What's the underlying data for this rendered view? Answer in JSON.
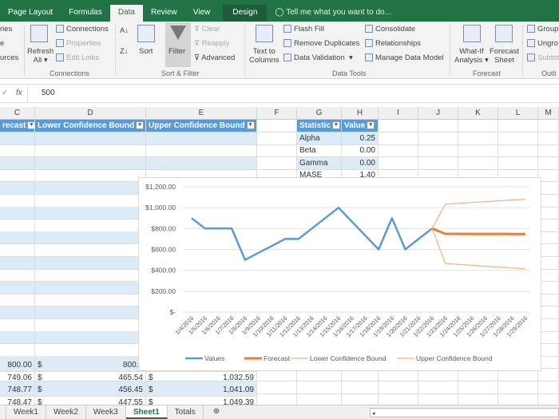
{
  "ribbon_tabs": [
    "Page Layout",
    "Formulas",
    "Data",
    "Review",
    "View"
  ],
  "active_tab": "Data",
  "design_tab": "Design",
  "tell_me": "Tell me what you want to do...",
  "ribbon": {
    "left_partial": [
      "ries",
      "e",
      "urces"
    ],
    "refresh": "Refresh",
    "refresh_all": "All",
    "connections": "Connections",
    "properties": "Properties",
    "edit_links": "Edit Links",
    "sort": "Sort",
    "filter": "Filter",
    "clear": "Clear",
    "reapply": "Reapply",
    "advanced": "Advanced",
    "text_to": "Text to",
    "columns": "Columns",
    "flash_fill": "Flash Fill",
    "remove_duplicates": "Remove Duplicates",
    "data_validation": "Data Validation",
    "consolidate": "Consolidate",
    "relationships": "Relationships",
    "manage_data_model": "Manage Data Model",
    "what_if": "What-If",
    "analysis": "Analysis",
    "forecast": "Forecast",
    "sheet": "Sheet",
    "group": "Group",
    "ungroup": "Ungro",
    "subtotal": "Subtot",
    "groups": {
      "connections": "Connections",
      "sort_filter": "Sort & Filter",
      "data_tools": "Data Tools",
      "forecast": "Forecast",
      "outline": "Outli"
    }
  },
  "formula_bar": {
    "fx": "fx",
    "value": "500"
  },
  "columns": [
    "C",
    "D",
    "E",
    "F",
    "G",
    "H",
    "I",
    "J",
    "K",
    "L",
    "M"
  ],
  "table_headers": {
    "c": "recast",
    "d": "Lower Confidence Bound",
    "e": "Upper Confidence Bound"
  },
  "stats": {
    "headers": [
      "Statistic",
      "Value"
    ],
    "rows": [
      [
        "Alpha",
        "0.25"
      ],
      [
        "Beta",
        "0.00"
      ],
      [
        "Gamma",
        "0.00"
      ],
      [
        "MASE",
        "1.40"
      ]
    ]
  },
  "bottom_rows": [
    {
      "c": "800.00",
      "d_cur": "$",
      "d": "800.0",
      "e_cur": "",
      "e": ""
    },
    {
      "c": "749.06",
      "d_cur": "$",
      "d": "465.54",
      "e_cur": "$",
      "e": "1,032.59"
    },
    {
      "c": "748.77",
      "d_cur": "$",
      "d": "456.45",
      "e_cur": "$",
      "e": "1,041.09"
    },
    {
      "c": "748.47",
      "d_cur": "$",
      "d": "447.55",
      "e_cur": "$",
      "e": "1,049.39"
    }
  ],
  "sheet_tabs": [
    "Week1",
    "Week2",
    "Week3",
    "Sheet1",
    "Totals"
  ],
  "active_sheet": "Sheet1",
  "chart_data": {
    "type": "line",
    "x": [
      "1/4/2016",
      "1/5/2016",
      "1/6/2016",
      "1/7/2016",
      "1/8/2016",
      "1/9/2016",
      "1/10/2016",
      "1/11/2016",
      "1/12/2016",
      "1/13/2016",
      "1/14/2016",
      "1/15/2016",
      "1/16/2016",
      "1/17/2016",
      "1/18/2016",
      "1/19/2016",
      "1/20/2016",
      "1/21/2016",
      "1/22/2016",
      "1/23/2016",
      "1/24/2016",
      "1/25/2016",
      "1/26/2016",
      "1/27/2016",
      "1/28/2016",
      "1/29/2016"
    ],
    "yticks": [
      "$-",
      "$200.00",
      "$400.00",
      "$600.00",
      "$800.00",
      "$1,000.00",
      "$1,200.00"
    ],
    "ylim": [
      0,
      1200
    ],
    "grid": true,
    "legend": "bottom",
    "series": [
      {
        "name": "Values",
        "color": "#5b9bd5",
        "values": [
          900,
          800,
          800,
          800,
          500,
          567,
          633,
          700,
          700,
          800,
          900,
          1000,
          867,
          733,
          600,
          900,
          600,
          700,
          800,
          null,
          null,
          null,
          null,
          null,
          null,
          null
        ]
      },
      {
        "name": "Forecast",
        "color": "#ed7d31",
        "values": [
          null,
          null,
          null,
          null,
          null,
          null,
          null,
          null,
          null,
          null,
          null,
          null,
          null,
          null,
          null,
          null,
          null,
          null,
          800,
          749.06,
          748.77,
          748.47,
          748.2,
          747.9,
          747.6,
          747.3
        ]
      },
      {
        "name": "Lower Confidence Bound",
        "color": "#f4b183",
        "values": [
          null,
          null,
          null,
          null,
          null,
          null,
          null,
          null,
          null,
          null,
          null,
          null,
          null,
          null,
          null,
          null,
          null,
          null,
          800,
          465.54,
          456.45,
          447.55,
          439,
          431,
          423,
          415
        ]
      },
      {
        "name": "Upper Confidence Bound",
        "color": "#f4b183",
        "values": [
          null,
          null,
          null,
          null,
          null,
          null,
          null,
          null,
          null,
          null,
          null,
          null,
          null,
          null,
          null,
          null,
          null,
          null,
          800,
          1032.59,
          1041.09,
          1049.39,
          1057.5,
          1065.4,
          1073,
          1080.6
        ]
      }
    ]
  }
}
